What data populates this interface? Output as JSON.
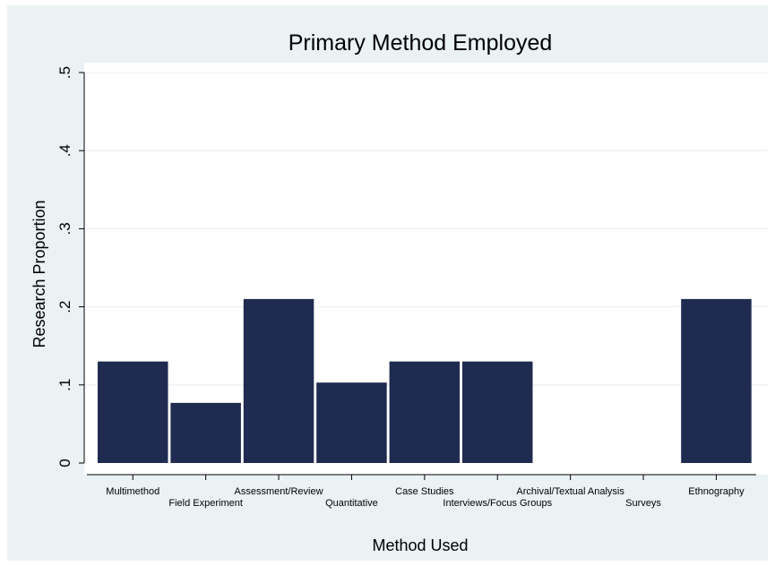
{
  "chart_data": {
    "type": "bar",
    "title": "Primary Method Employed",
    "xlabel": "Method Used",
    "ylabel": "Research Proportion",
    "categories": [
      "Multimethod",
      "Field Experiment",
      "Assessment/Review",
      "Quantitative",
      "Case Studies",
      "Interviews/Focus Groups",
      "Archival/Textual Analysis",
      "Surveys",
      "Ethnography"
    ],
    "values": [
      0.13,
      0.077,
      0.21,
      0.103,
      0.13,
      0.13,
      0,
      0,
      0.21
    ],
    "ylim": [
      0,
      0.5
    ],
    "yticks": [
      0,
      0.1,
      0.2,
      0.3,
      0.4,
      0.5
    ],
    "ytick_labels": [
      "0",
      ".1",
      ".2",
      ".3",
      ".4",
      ".5"
    ],
    "grid": true,
    "legend": "none",
    "colors": {
      "bar": "#1f2b50",
      "plot_background": "#ffffff",
      "outer_background": "#eaf2f3",
      "gridline": "#e8eef0"
    }
  }
}
